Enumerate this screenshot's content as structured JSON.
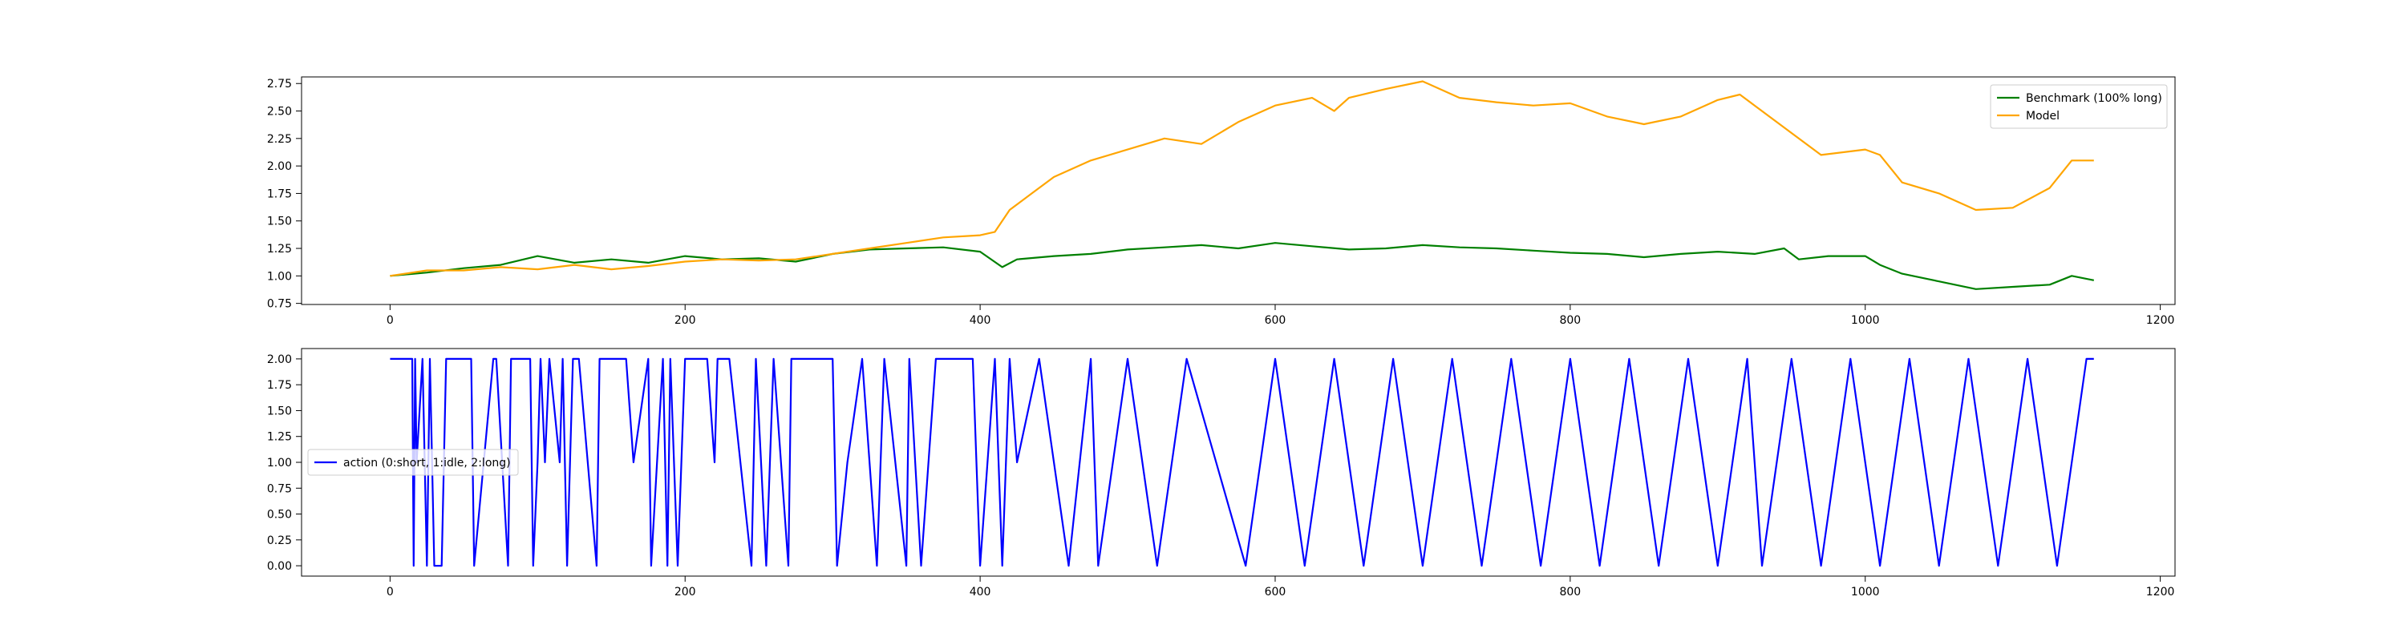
{
  "chart_data": [
    {
      "type": "line",
      "title": "",
      "xlabel": "",
      "ylabel": "",
      "xlim": [
        -60,
        1210
      ],
      "ylim": [
        0.74,
        2.81
      ],
      "xticks": [
        0,
        200,
        400,
        600,
        800,
        1000,
        1200
      ],
      "yticks": [
        0.75,
        1.0,
        1.25,
        1.5,
        1.75,
        2.0,
        2.25,
        2.5,
        2.75
      ],
      "grid": false,
      "legend_position": "upper right",
      "series": [
        {
          "name": "Benchmark (100% long)",
          "color": "#008000",
          "x": [
            0,
            25,
            50,
            75,
            100,
            125,
            150,
            175,
            200,
            225,
            250,
            275,
            300,
            325,
            350,
            375,
            400,
            415,
            425,
            450,
            475,
            500,
            525,
            550,
            575,
            600,
            625,
            650,
            675,
            700,
            725,
            750,
            775,
            800,
            825,
            850,
            875,
            900,
            925,
            945,
            955,
            975,
            1000,
            1010,
            1025,
            1050,
            1075,
            1100,
            1125,
            1140,
            1155
          ],
          "y": [
            1.0,
            1.03,
            1.07,
            1.1,
            1.18,
            1.12,
            1.15,
            1.12,
            1.18,
            1.15,
            1.16,
            1.13,
            1.2,
            1.24,
            1.25,
            1.26,
            1.22,
            1.08,
            1.15,
            1.18,
            1.2,
            1.24,
            1.26,
            1.28,
            1.25,
            1.3,
            1.27,
            1.24,
            1.25,
            1.28,
            1.26,
            1.25,
            1.23,
            1.21,
            1.2,
            1.17,
            1.2,
            1.22,
            1.2,
            1.25,
            1.15,
            1.18,
            1.18,
            1.1,
            1.02,
            0.95,
            0.88,
            0.9,
            0.92,
            1.0,
            0.96
          ]
        },
        {
          "name": "Model",
          "color": "#FFA500",
          "x": [
            0,
            25,
            50,
            75,
            100,
            125,
            150,
            175,
            200,
            225,
            250,
            275,
            300,
            325,
            350,
            375,
            400,
            410,
            420,
            435,
            450,
            475,
            500,
            525,
            550,
            575,
            600,
            625,
            640,
            650,
            675,
            700,
            725,
            750,
            775,
            800,
            825,
            850,
            875,
            900,
            915,
            925,
            950,
            970,
            1000,
            1010,
            1025,
            1050,
            1075,
            1100,
            1125,
            1140,
            1155
          ],
          "y": [
            1.0,
            1.05,
            1.05,
            1.08,
            1.06,
            1.1,
            1.06,
            1.09,
            1.13,
            1.15,
            1.14,
            1.15,
            1.2,
            1.25,
            1.3,
            1.35,
            1.37,
            1.4,
            1.6,
            1.75,
            1.9,
            2.05,
            2.15,
            2.25,
            2.2,
            2.4,
            2.55,
            2.62,
            2.5,
            2.62,
            2.7,
            2.77,
            2.62,
            2.58,
            2.55,
            2.57,
            2.45,
            2.38,
            2.45,
            2.6,
            2.65,
            2.55,
            2.3,
            2.1,
            2.15,
            2.1,
            1.85,
            1.75,
            1.6,
            1.62,
            1.8,
            2.05,
            2.05
          ]
        }
      ]
    },
    {
      "type": "line",
      "title": "",
      "xlabel": "",
      "ylabel": "",
      "xlim": [
        -60,
        1210
      ],
      "ylim": [
        -0.1,
        2.1
      ],
      "xticks": [
        0,
        200,
        400,
        600,
        800,
        1000,
        1200
      ],
      "yticks": [
        0.0,
        0.25,
        0.5,
        0.75,
        1.0,
        1.25,
        1.5,
        1.75,
        2.0
      ],
      "grid": false,
      "legend_position": "center left",
      "series": [
        {
          "name": "action (0:short, 1:idle, 2:long)",
          "color": "#0000FF",
          "x": [
            0,
            15,
            16,
            17,
            18,
            22,
            25,
            27,
            30,
            35,
            38,
            55,
            57,
            70,
            72,
            80,
            82,
            95,
            97,
            100,
            102,
            105,
            108,
            115,
            117,
            120,
            124,
            128,
            140,
            142,
            160,
            165,
            175,
            177,
            185,
            188,
            190,
            195,
            200,
            215,
            220,
            222,
            230,
            245,
            248,
            255,
            260,
            270,
            272,
            300,
            303,
            310,
            320,
            330,
            335,
            350,
            352,
            360,
            370,
            395,
            400,
            410,
            415,
            420,
            425,
            440,
            460,
            475,
            480,
            500,
            520,
            540,
            560,
            580,
            600,
            620,
            640,
            660,
            680,
            700,
            720,
            740,
            760,
            780,
            800,
            820,
            840,
            860,
            880,
            900,
            920,
            930,
            950,
            970,
            990,
            1010,
            1030,
            1050,
            1070,
            1090,
            1110,
            1130,
            1150,
            1155
          ],
          "y": [
            2,
            2,
            0,
            2,
            1,
            2,
            0,
            2,
            0,
            0,
            2,
            2,
            0,
            2,
            2,
            0,
            2,
            2,
            0,
            1,
            2,
            1,
            2,
            1,
            2,
            0,
            2,
            2,
            0,
            2,
            2,
            1,
            2,
            0,
            2,
            0,
            2,
            0,
            2,
            2,
            1,
            2,
            2,
            0,
            2,
            0,
            2,
            0,
            2,
            2,
            0,
            1,
            2,
            0,
            2,
            0,
            2,
            0,
            2,
            2,
            0,
            2,
            0,
            2,
            1,
            2,
            0,
            2,
            0,
            2,
            0,
            2,
            1,
            0,
            2,
            0,
            2,
            0,
            2,
            0,
            2,
            0,
            2,
            0,
            2,
            0,
            2,
            0,
            2,
            0,
            2,
            0,
            2,
            0,
            2,
            0,
            2,
            0,
            2,
            0,
            2,
            0,
            2,
            2
          ]
        }
      ]
    }
  ]
}
